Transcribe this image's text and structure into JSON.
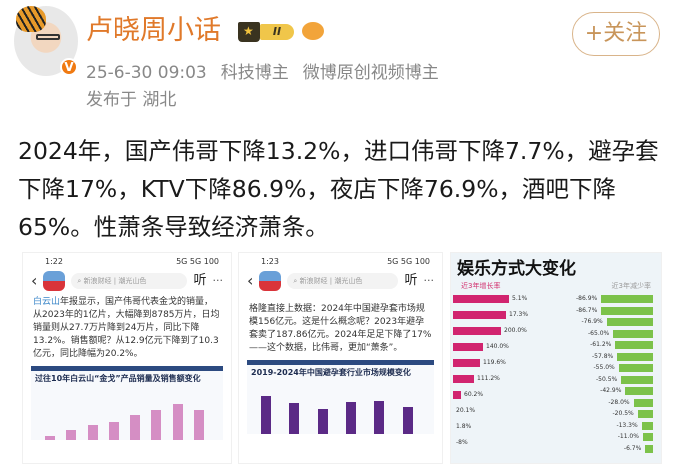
{
  "user": {
    "name": "卢晓周小话",
    "level_badge": "II",
    "verified_badge": "V",
    "follow_label": "+关注"
  },
  "post": {
    "time": "25-6-30 09:03",
    "tags": [
      "科技博主",
      "微博原创视频博主"
    ],
    "location": "发布于 湖北",
    "text": "2024年，国产伟哥下降13.2%，进口伟哥下降7.7%，避孕套下降17%，KTV下降86.9%，夜店下降76.9%，酒吧下降65%。性萧条导致经济萧条。"
  },
  "images": [
    {
      "status_time": "1:22",
      "status_icons": "5G 5G 100",
      "search_placeholder": "新浪财经 | 潮光山色",
      "listen": "听",
      "more": "···",
      "text_highlight": "白云山",
      "text": "年报显示，国产伟哥代表金戈的销量，从2023年的1亿片，大幅降到8785万片，日均销量则从27.7万片降到24万片，同比下降13.2%。销售额呢？从12.9亿元下降到了10.3亿元，同比降幅为20.2%。",
      "chart_title": "过往10年白云山“金戈”产品销量及销售额变化",
      "chart_values": [
        1.5,
        3.4,
        5.1,
        6.2,
        8.6,
        10.4,
        12.4,
        10.3
      ]
    },
    {
      "status_time": "1:23",
      "status_icons": "5G 5G 100",
      "search_placeholder": "新浪财经 | 潮光山色",
      "listen": "听",
      "more": "···",
      "text": "格隆直接上数据：2024年中国避孕套市场规模156亿元。这是什么概念呢？2023年避孕套卖了187.86亿元。2024年足足下降了17%——这个数据，比伟哥，更加“萧条”。",
      "chart_title": "2019-2024年中国避孕套行业市场规模变化",
      "chart_values": [
        219.5,
        177.25,
        145.28,
        183.37,
        187.86,
        156
      ]
    },
    {
      "title": "娱乐方式大变化",
      "left_header": "近3年增长率",
      "right_header": "近3年减少率",
      "left_values": [
        "5.1%",
        "17.3%",
        "200.0%",
        "140.0%",
        "119.6%",
        "111.2%",
        "60.2%",
        "20.1%",
        "1.8%",
        "-8%"
      ],
      "right_values": [
        "-86.9%",
        "-86.7%",
        "-76.9%",
        "-65.0%",
        "-61.2%",
        "-57.8%",
        "-55.0%",
        "-50.5%",
        "-42.9%",
        "-28.0%",
        "-20.5%",
        "-13.3%",
        "-11.0%",
        "-6.7%"
      ]
    }
  ],
  "colors": {
    "name": "#e0792a",
    "follow": "#c8955a",
    "meta": "#888888",
    "growth": "#d1246f",
    "decline": "#7cc24a"
  }
}
